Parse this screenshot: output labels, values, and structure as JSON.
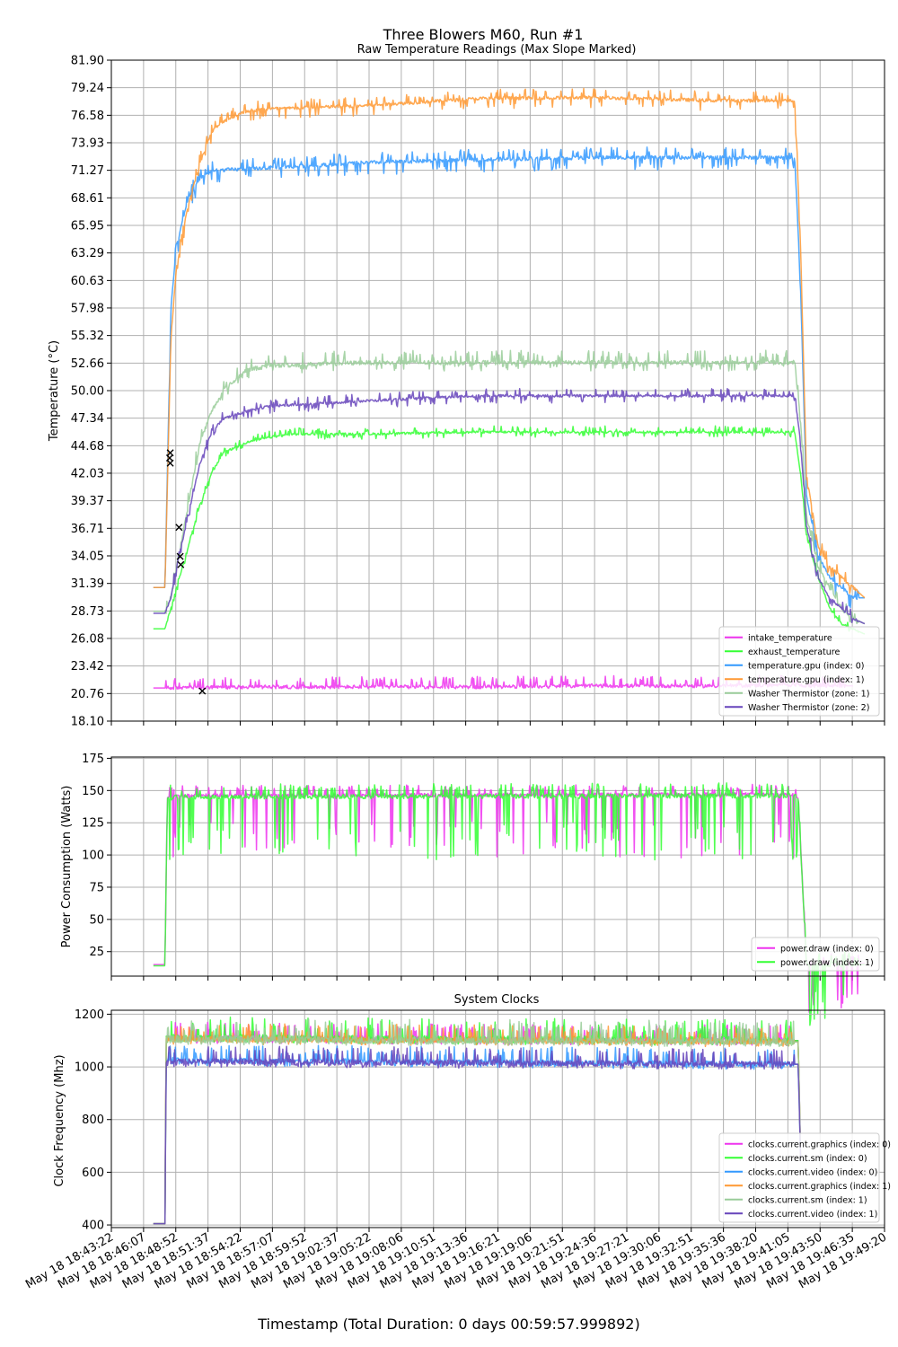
{
  "suptitle": "Three Blowers  M60, Run #1",
  "xlabel": "Timestamp (Total Duration: 0 days 00:59:57.999892)",
  "x_ticks": [
    "May 18 18:43:22",
    "May 18 18:46:07",
    "May 18 18:48:52",
    "May 18 18:51:37",
    "May 18 18:54:22",
    "May 18 18:57:07",
    "May 18 18:59:52",
    "May 18 19:02:37",
    "May 18 19:05:22",
    "May 18 19:08:06",
    "May 18 19:10:51",
    "May 18 19:13:36",
    "May 18 19:16:21",
    "May 18 19:19:06",
    "May 18 19:21:51",
    "May 18 19:24:36",
    "May 18 19:27:21",
    "May 18 19:30:06",
    "May 18 19:32:51",
    "May 18 19:35:36",
    "May 18 19:38:20",
    "May 18 19:41:05",
    "May 18 19:43:50",
    "May 18 19:46:35",
    "May 18 19:49:20"
  ],
  "chart_data": [
    {
      "type": "line",
      "title": "Raw Temperature Readings (Max Slope Marked)",
      "ylabel": "Temperature (°C)",
      "ylim": [
        18.1,
        81.9
      ],
      "yticks": [
        "18.10",
        "20.76",
        "23.42",
        "26.08",
        "28.73",
        "31.39",
        "34.05",
        "36.71",
        "39.37",
        "42.03",
        "44.68",
        "47.34",
        "50.00",
        "52.66",
        "55.32",
        "57.98",
        "60.63",
        "63.29",
        "65.95",
        "68.61",
        "71.27",
        "73.93",
        "76.58",
        "79.24",
        "81.90"
      ],
      "x_unit": "minutes from 18:43:22",
      "grid": true,
      "legend_position": "lower-right",
      "series": [
        {
          "name": "intake_temperature",
          "color": "#ee33ee",
          "x": [
            2,
            3,
            5,
            10,
            20,
            30,
            40,
            50,
            57,
            58,
            62
          ],
          "y": [
            21.3,
            21.3,
            21.3,
            21.4,
            21.4,
            21.4,
            21.5,
            21.5,
            21.6,
            21.5,
            21.5
          ],
          "noise": [
            0,
            1.0
          ]
        },
        {
          "name": "exhaust_temperature",
          "color": "#33ff33",
          "x": [
            2,
            3,
            3.5,
            4,
            5,
            6,
            7,
            8,
            10,
            12,
            14,
            20,
            30,
            40,
            50,
            57,
            57.5,
            58,
            59,
            60,
            61,
            62,
            63
          ],
          "y": [
            27,
            27,
            29,
            31,
            35,
            39,
            42,
            44,
            45,
            45.5,
            45.8,
            45.8,
            46,
            46,
            46,
            46,
            42,
            36,
            32,
            29,
            27.5,
            27,
            26.5
          ],
          "noise": [
            -0.5,
            0.6
          ]
        },
        {
          "name": "temperature.gpu (index: 0)",
          "color": "#3399ff",
          "x": [
            2,
            3,
            3.5,
            4,
            5,
            6,
            7,
            8,
            10,
            12,
            20,
            30,
            40,
            50,
            57,
            57.5,
            58,
            59,
            60,
            61,
            62,
            63
          ],
          "y": [
            31,
            31,
            58,
            64,
            68.6,
            70.5,
            71.2,
            71.3,
            71.4,
            71.5,
            72,
            72.3,
            72.5,
            72.5,
            72.5,
            60,
            40,
            34,
            32,
            31,
            30,
            30
          ],
          "noise": [
            -1.2,
            1.0
          ]
        },
        {
          "name": "temperature.gpu (index: 1)",
          "color": "#ff9933",
          "x": [
            2,
            3,
            3.5,
            4,
            5,
            6,
            7,
            8,
            10,
            12,
            20,
            30,
            40,
            50,
            57,
            57.5,
            58,
            59,
            60,
            61,
            62,
            63
          ],
          "y": [
            31,
            31,
            55,
            62,
            68,
            72,
            75,
            76,
            77,
            77.2,
            77.5,
            78.2,
            78.3,
            78,
            78,
            64,
            42,
            35,
            33,
            32,
            31,
            30
          ],
          "noise": [
            -1.0,
            0.9
          ]
        },
        {
          "name": "Washer Thermistor (zone: 1)",
          "color": "#99cc99",
          "x": [
            2,
            3,
            3.5,
            4,
            5,
            6,
            7,
            8,
            10,
            12,
            20,
            30,
            40,
            50,
            57,
            57.5,
            58,
            59,
            60,
            61,
            62,
            63
          ],
          "y": [
            28.7,
            28.7,
            30,
            33,
            39,
            45,
            48,
            50,
            52,
            52.4,
            52.7,
            52.7,
            52.7,
            52.7,
            52.7,
            47,
            38,
            33,
            31,
            29,
            28,
            27.5
          ],
          "noise": [
            -0.8,
            1.2
          ]
        },
        {
          "name": "Washer Thermistor (zone: 2)",
          "color": "#6644bb",
          "x": [
            2,
            3,
            3.5,
            4,
            5,
            6,
            7,
            8,
            10,
            12,
            20,
            30,
            40,
            50,
            57,
            57.5,
            58,
            59,
            60,
            61,
            62,
            63
          ],
          "y": [
            28.5,
            28.5,
            30,
            33,
            38,
            43,
            46,
            47.3,
            48,
            48.5,
            49,
            49.5,
            49.5,
            49.5,
            49.5,
            45,
            37,
            32,
            30,
            29,
            28,
            27.5
          ],
          "noise": [
            -0.7,
            0.7
          ]
        }
      ],
      "markers": {
        "symbol": "x",
        "points": [
          {
            "x": 3.45,
            "y": 44
          },
          {
            "x": 3.4,
            "y": 43.5
          },
          {
            "x": 3.45,
            "y": 43
          },
          {
            "x": 4.2,
            "y": 36.8
          },
          {
            "x": 4.3,
            "y": 34
          },
          {
            "x": 4.35,
            "y": 33.2
          },
          {
            "x": 6.2,
            "y": 21
          }
        ]
      }
    },
    {
      "type": "line",
      "ylabel": "Power Consumption (Watts)",
      "ylim": [
        6,
        176
      ],
      "yticks": [
        "25",
        "50",
        "75",
        "100",
        "125",
        "150",
        "175"
      ],
      "x_unit": "minutes from 18:43:22",
      "grid": true,
      "legend_position": "lower-right",
      "series": [
        {
          "name": "power.draw (index: 0)",
          "color": "#ee33ee",
          "x": [
            2,
            3,
            3.2,
            4,
            57,
            57.3,
            58,
            63
          ],
          "y": [
            15,
            15,
            145,
            146,
            147,
            145,
            16,
            16
          ],
          "noise": [
            -50,
            8
          ]
        },
        {
          "name": "power.draw (index: 1)",
          "color": "#33ff33",
          "x": [
            2,
            3,
            3.2,
            4,
            57,
            57.3,
            58,
            63
          ],
          "y": [
            14,
            14,
            144,
            145,
            146,
            144,
            15,
            15
          ],
          "noise": [
            -50,
            10
          ]
        }
      ]
    },
    {
      "type": "line",
      "title": "System Clocks",
      "ylabel": "Clock Frequency (Mhz)",
      "ylim": [
        390,
        1215
      ],
      "yticks": [
        "400",
        "600",
        "800",
        "1000",
        "1200"
      ],
      "x_unit": "minutes from 18:43:22",
      "grid": true,
      "legend_position": "lower-right",
      "series": [
        {
          "name": "clocks.current.graphics (index: 0)",
          "color": "#ee33ee",
          "x": [
            2,
            3,
            3.1,
            57,
            57.3,
            57.5
          ],
          "y": [
            405,
            405,
            1110,
            1100,
            1100,
            650
          ],
          "noise": [
            -20,
            60
          ]
        },
        {
          "name": "clocks.current.sm (index: 0)",
          "color": "#33ff33",
          "x": [
            2,
            3,
            3.1,
            57,
            57.3,
            57.5
          ],
          "y": [
            405,
            405,
            1110,
            1100,
            1100,
            650
          ],
          "noise": [
            -20,
            80
          ]
        },
        {
          "name": "clocks.current.video (index: 0)",
          "color": "#3399ff",
          "x": [
            2,
            3,
            3.1,
            57,
            57.3,
            57.5
          ],
          "y": [
            405,
            405,
            1025,
            1010,
            1010,
            650
          ],
          "noise": [
            -20,
            60
          ]
        },
        {
          "name": "clocks.current.graphics (index: 1)",
          "color": "#ff9933",
          "x": [
            2,
            3,
            3.1,
            57,
            57.3,
            57.5
          ],
          "y": [
            405,
            405,
            1105,
            1095,
            1095,
            650
          ],
          "noise": [
            -20,
            60
          ]
        },
        {
          "name": "clocks.current.sm (index: 1)",
          "color": "#99cc99",
          "x": [
            2,
            3,
            3.1,
            57,
            57.3,
            57.5
          ],
          "y": [
            405,
            405,
            1105,
            1095,
            1095,
            650
          ],
          "noise": [
            -20,
            80
          ]
        },
        {
          "name": "clocks.current.video (index: 1)",
          "color": "#6644bb",
          "x": [
            2,
            3,
            3.1,
            57,
            57.3,
            57.5
          ],
          "y": [
            405,
            405,
            1020,
            1010,
            1010,
            650
          ],
          "noise": [
            -20,
            60
          ]
        }
      ]
    }
  ]
}
